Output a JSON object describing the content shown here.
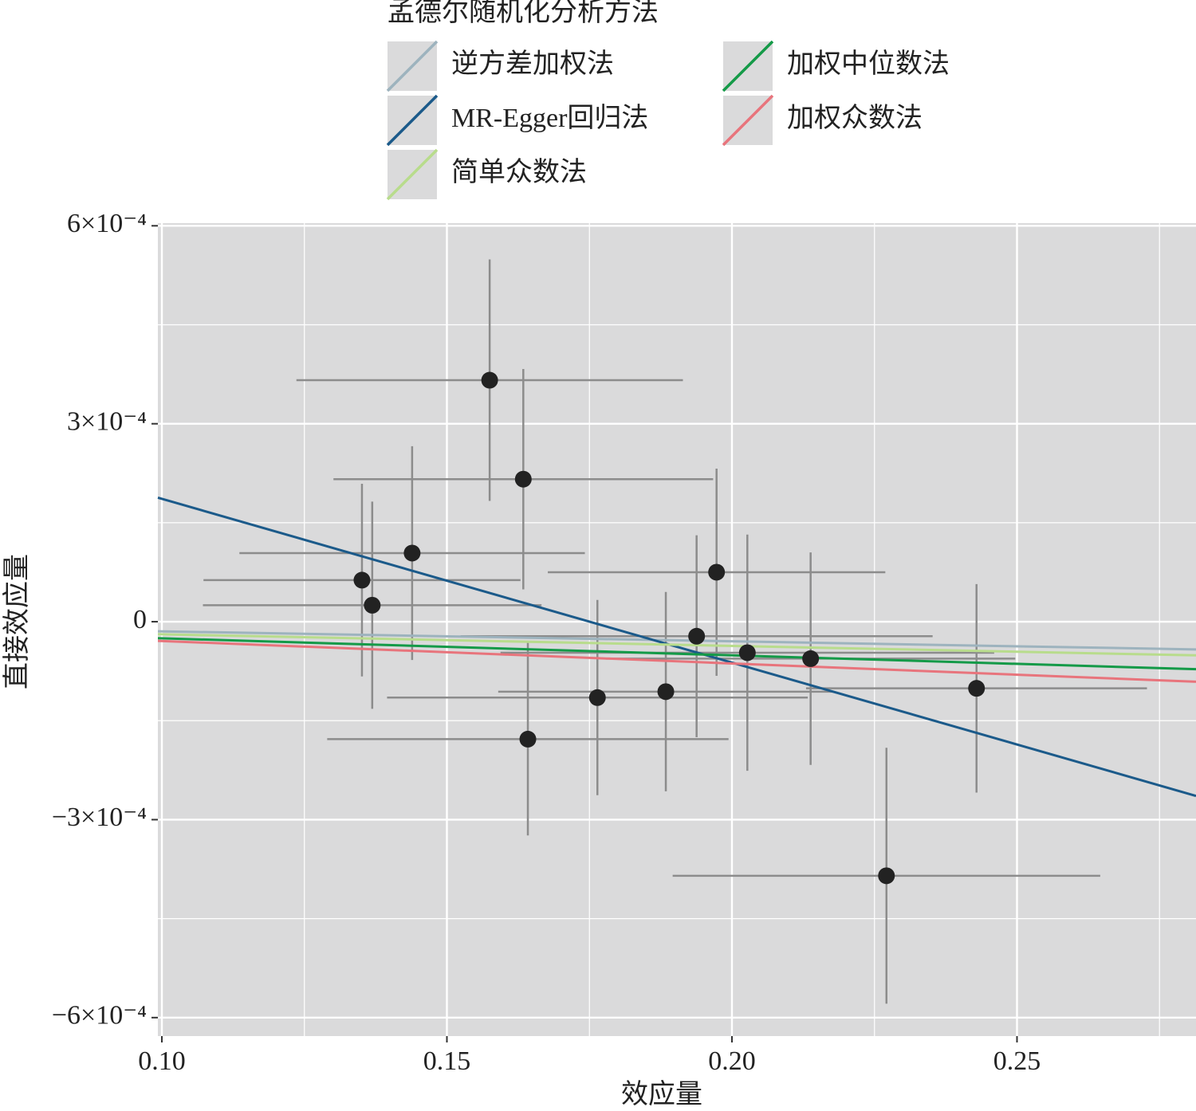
{
  "chart_data": {
    "type": "scatter",
    "legend_title": "孟德尔随机化分析方法",
    "x_label": "效应量",
    "y_label": "直接效应量",
    "xlim": [
      0.0993,
      0.2814
    ],
    "ylim": [
      -0.000628,
      0.000604
    ],
    "xticks": [
      {
        "value": 0.1,
        "label": "0.10"
      },
      0.15,
      {
        "value": 0.2,
        "label": "0.20"
      },
      0.25
    ],
    "yticks": [
      {
        "value": -0.0006,
        "label": "−6×10⁻⁴"
      },
      {
        "value": -0.0003,
        "label": "−3×10⁻⁴"
      },
      0,
      {
        "value": 0.0003,
        "label": "3×10⁻⁴"
      },
      {
        "value": 0.0006,
        "label": "6×10⁻⁴"
      }
    ],
    "grid": true,
    "background": "#dadadb",
    "points": {
      "color": "#222222",
      "errorbar_color": "#8c8c8c",
      "x": [
        0.1575,
        0.1634,
        0.1439,
        0.1351,
        0.1369,
        0.1973,
        0.1938,
        0.2027,
        0.2138,
        0.2429,
        0.1764,
        0.1884,
        0.1642,
        0.2271
      ],
      "y": [
        0.000366,
        0.000216,
        0.000104,
        6.3e-05,
        2.5e-05,
        7.5e-05,
        -2.2e-05,
        -4.7e-05,
        -5.6e-05,
        -0.000101,
        -0.000115,
        -0.000106,
        -0.000178,
        -0.000385
      ],
      "xerr": [
        0.0339,
        0.0333,
        0.0303,
        0.0278,
        0.0297,
        0.0296,
        0.0414,
        0.0433,
        0.0359,
        0.0299,
        0.0369,
        0.0294,
        0.0352,
        0.0375
      ],
      "yerr": [
        0.000183,
        0.000167,
        0.000162,
        0.000146,
        0.000157,
        0.000157,
        0.000153,
        0.000179,
        0.000161,
        0.000158,
        0.000148,
        0.000151,
        0.000146,
        0.000194
      ]
    },
    "series": [
      {
        "name": "逆方差加权法",
        "color": "#9db3be",
        "x": [
          0.0993,
          0.2814
        ],
        "values": [
          -1.45e-05,
          -4.2e-05
        ]
      },
      {
        "name": "MR-Egger回归法",
        "color": "#1b5a8a",
        "x": [
          0.0993,
          0.2814
        ],
        "values": [
          0.000188,
          -0.000264
        ]
      },
      {
        "name": "简单众数法",
        "color": "#b8dc8c",
        "x": [
          0.0993,
          0.2814
        ],
        "values": [
          -1.9e-05,
          -5.1e-05
        ]
      },
      {
        "name": "加权中位数法",
        "color": "#149a48",
        "x": [
          0.0993,
          0.2814
        ],
        "values": [
          -2.5e-05,
          -7.2e-05
        ]
      },
      {
        "name": "加权众数法",
        "color": "#e8747c",
        "x": [
          0.0993,
          0.2814
        ],
        "values": [
          -2.9e-05,
          -9.1e-05
        ]
      }
    ]
  }
}
